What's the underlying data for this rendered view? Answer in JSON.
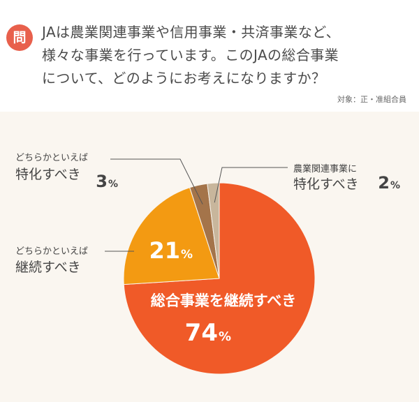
{
  "header": {
    "badge": "問",
    "question_lines": [
      "JAは農業関連事業や信用事業・共済事業など、",
      "様々な事業を行っています。このJAの総合事業",
      "について、どのようにお考えになりますか？"
    ],
    "target": "対象：正・准組合員"
  },
  "colors": {
    "badge": "#e8604c",
    "background": "#faf6f0",
    "slice_total": "#f05a28",
    "slice_rather_continue": "#f39a12",
    "slice_rather_specialize": "#a4744a",
    "slice_specialize": "#c8b69c"
  },
  "chart_data": {
    "type": "pie",
    "unit": "%",
    "start_angle_deg": 0,
    "direction": "clockwise",
    "slices": [
      {
        "key": "total",
        "label": [
          "総合事業を継続すべき"
        ],
        "value": 74,
        "label_position": "inside",
        "color": "#f05a28"
      },
      {
        "key": "rather_continue",
        "label": [
          "どちらかといえば",
          "継続すべき"
        ],
        "value": 21,
        "label_position": "outside-left",
        "color": "#f39a12"
      },
      {
        "key": "rather_specialize",
        "label": [
          "どちらかといえば",
          "特化すべき"
        ],
        "value": 3,
        "label_position": "outside-top-left",
        "color": "#a4744a"
      },
      {
        "key": "specialize",
        "label": [
          "農業関連事業に",
          "特化すべき"
        ],
        "value": 2,
        "label_position": "outside-top-right",
        "color": "#c8b69c"
      }
    ]
  }
}
